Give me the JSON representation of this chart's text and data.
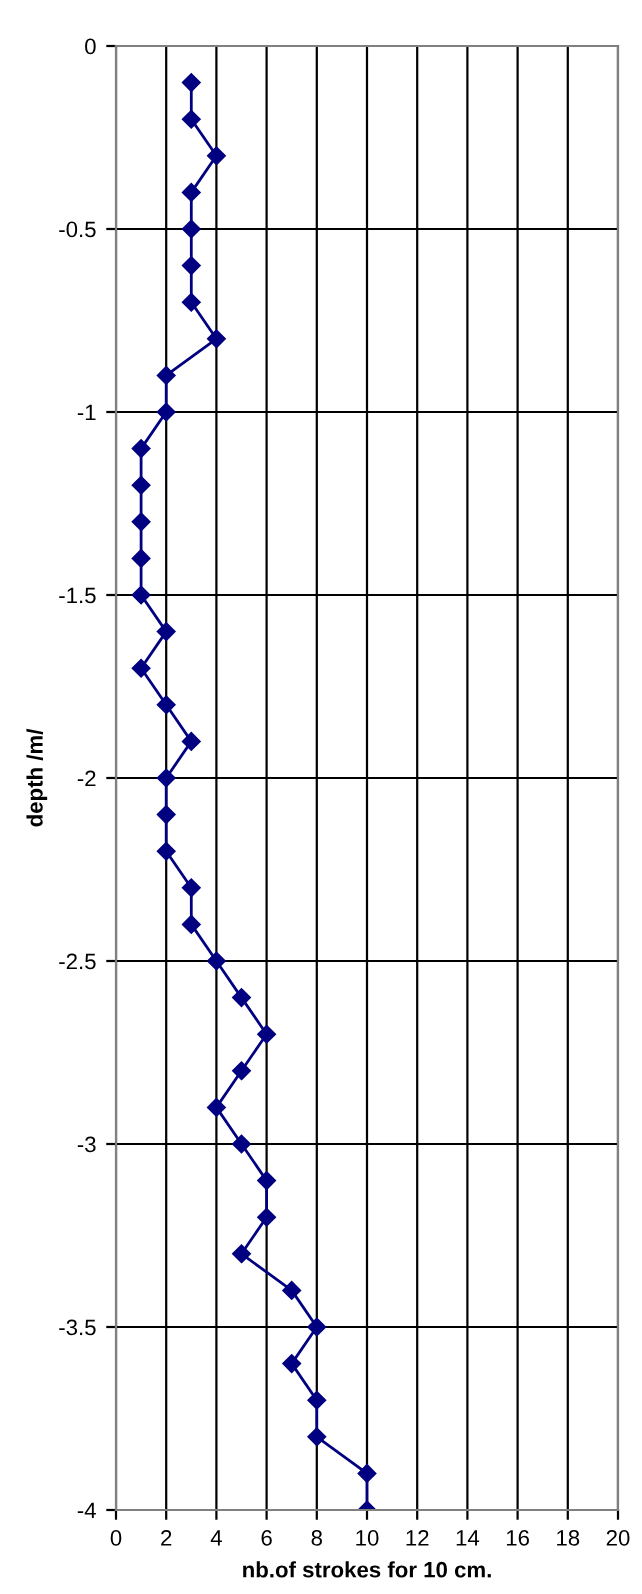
{
  "chart_data": {
    "type": "line",
    "xlabel": "nb.of strokes for 10 cm.",
    "ylabel": "depth /m/",
    "series": [
      {
        "color": "#000080",
        "x": [
          3,
          3,
          4,
          3,
          3,
          3,
          3,
          4,
          2,
          2,
          1,
          1,
          1,
          1,
          1,
          2,
          1,
          2,
          3,
          2,
          2,
          2,
          3,
          3,
          4,
          5,
          6,
          5,
          4,
          5,
          6,
          6,
          5,
          7,
          8,
          7,
          8,
          8,
          10,
          10
        ],
        "values": [
          -0.1,
          -0.2,
          -0.3,
          -0.4,
          -0.5,
          -0.6,
          -0.7,
          -0.8,
          -0.9,
          -1.0,
          -1.1,
          -1.2,
          -1.3,
          -1.4,
          -1.5,
          -1.6,
          -1.7,
          -1.8,
          -1.9,
          -2.0,
          -2.1,
          -2.2,
          -2.3,
          -2.4,
          -2.5,
          -2.6,
          -2.7,
          -2.8,
          -2.9,
          -3.0,
          -3.1,
          -3.2,
          -3.3,
          -3.4,
          -3.5,
          -3.6,
          -3.7,
          -3.8,
          -3.9,
          -4.0
        ]
      }
    ],
    "xlim": [
      0,
      20
    ],
    "xticks": [
      0,
      2,
      4,
      6,
      8,
      10,
      12,
      14,
      16,
      18,
      20
    ],
    "ylim": [
      -4,
      0
    ],
    "yticks": [
      -4,
      -3.5,
      -3,
      -2.5,
      -2,
      -1.5,
      -1,
      -0.5,
      0
    ],
    "grid": true,
    "marker": "diamond",
    "line_style": "solid"
  }
}
